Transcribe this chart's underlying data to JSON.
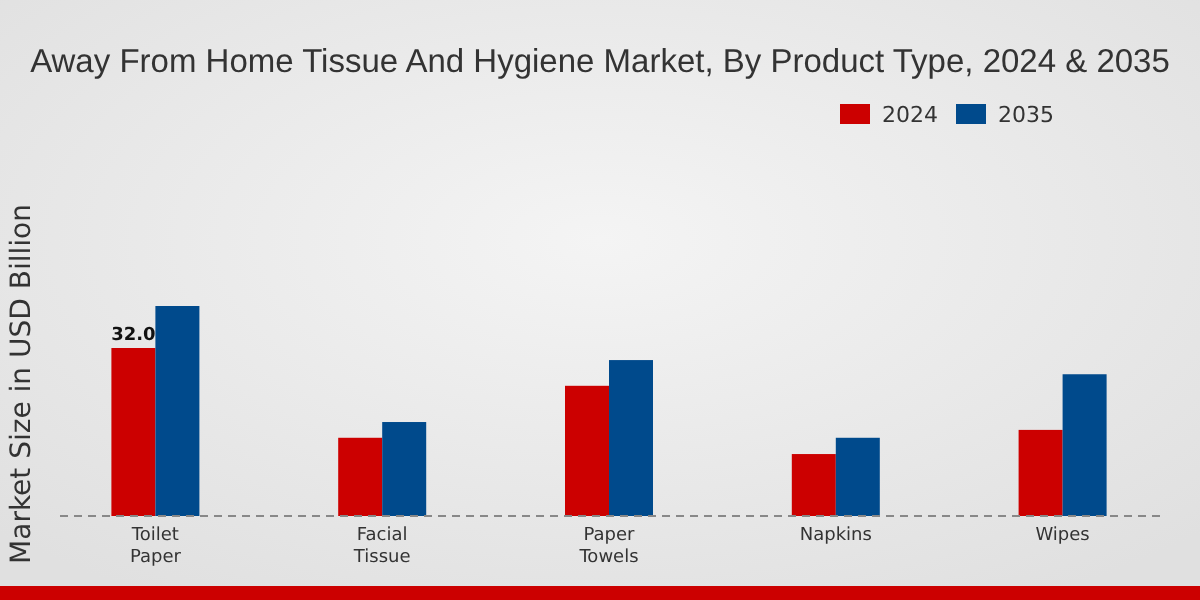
{
  "chart_data": {
    "type": "bar",
    "title": "Away From Home Tissue And Hygiene Market, By Product Type, 2024 & 2035",
    "ylabel": "Market Size in USD Billion",
    "categories": [
      "Toilet Paper",
      "Facial Tissue",
      "Paper Towels",
      "Napkins",
      "Wipes"
    ],
    "series": [
      {
        "name": "2024",
        "color": "#cc0000",
        "values": [
          32.0,
          14.9,
          24.8,
          11.8,
          16.4
        ],
        "value_labels": [
          "32.0",
          null,
          null,
          null,
          null
        ]
      },
      {
        "name": "2035",
        "color": "#004a8c",
        "values": [
          40.0,
          17.9,
          29.7,
          14.9,
          27.0
        ]
      }
    ],
    "legend": "top right"
  }
}
